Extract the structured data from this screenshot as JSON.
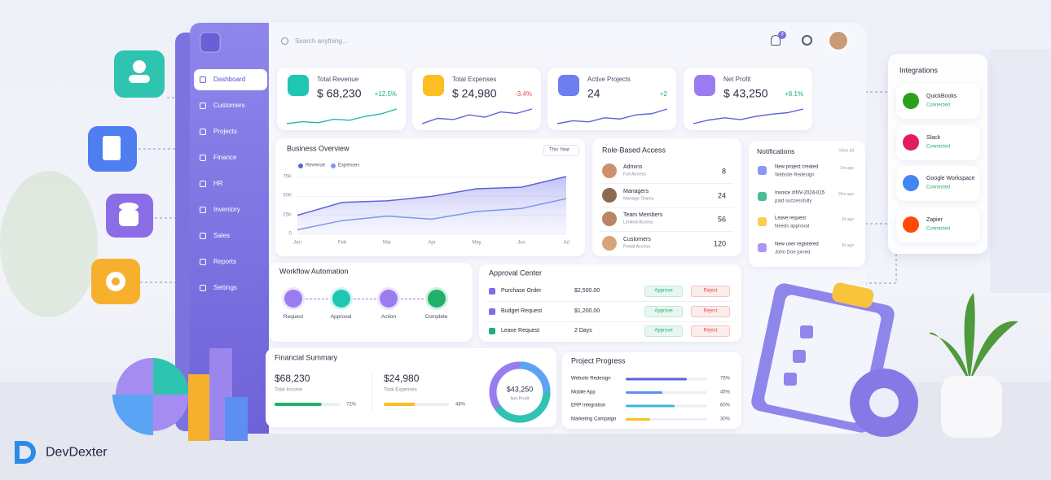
{
  "brand": "DevDexter",
  "search_placeholder": "Search anything...",
  "notification_badge": 3,
  "sidebar": [
    "Dashboard",
    "Customers",
    "Projects",
    "Finance",
    "HR",
    "Inventory",
    "Sales",
    "Reports",
    "Settings"
  ],
  "kpis": [
    {
      "label": "Total Revenue",
      "value": "$ 68,230",
      "change": "+12.5%",
      "trend": [
        3,
        3.4,
        3.2,
        3.9,
        3.7,
        4.5,
        5,
        6
      ]
    },
    {
      "label": "Total Expenses",
      "value": "$ 24,980",
      "change": "-3.4%",
      "trend": [
        2,
        3.8,
        3.4,
        5,
        4.2,
        6,
        5.5,
        7
      ]
    },
    {
      "label": "Active Projects",
      "value": "24",
      "change": "+2",
      "trend": [
        2,
        3,
        2.6,
        4,
        3.6,
        5,
        5.4,
        7
      ]
    },
    {
      "label": "Net Profit",
      "value": "$ 43,250",
      "change": "+8.1%",
      "trend": [
        2,
        3,
        3.6,
        3.1,
        4,
        4.6,
        5,
        6
      ]
    }
  ],
  "chart_data": {
    "type": "area",
    "title": "Business Overview",
    "categories": [
      "Jan",
      "Feb",
      "Mar",
      "Apr",
      "May",
      "Jun",
      "Jul"
    ],
    "series": [
      {
        "name": "Revenue",
        "color": "#5b63d9",
        "values": [
          25000,
          42000,
          44000,
          50000,
          60000,
          62000,
          76000
        ]
      },
      {
        "name": "Expenses",
        "color": "#7d96ef",
        "values": [
          6000,
          18000,
          24000,
          20000,
          30000,
          34000,
          47000
        ]
      }
    ],
    "ylim": [
      0,
      80000
    ],
    "yticks": [
      0,
      {
        "value": 25000,
        "label": "25K"
      },
      {
        "value": 50000,
        "label": "50K"
      },
      {
        "value": 75000,
        "label": "75K"
      }
    ],
    "grid": true
  },
  "overview_filter": "This Year",
  "roles": {
    "title": "Role-Based Access",
    "items": [
      {
        "name": "Admins",
        "access": "Full Access",
        "count": 8
      },
      {
        "name": "Managers",
        "access": "Manage Teams",
        "count": 24
      },
      {
        "name": "Team Members",
        "access": "Limited Access",
        "count": 56
      },
      {
        "name": "Customers",
        "access": "Portal Access",
        "count": 120
      }
    ]
  },
  "notifications": {
    "title": "Notifications",
    "view_all": "View all",
    "items": [
      {
        "title": "New project created",
        "detail": "Website Redesign",
        "time": "2m ago"
      },
      {
        "title": "Invoice #INV-2024-015",
        "detail": "paid successfully",
        "time": "15m ago"
      },
      {
        "title": "Leave request",
        "detail": "Needs approval",
        "time": "1h ago"
      },
      {
        "title": "New user registered",
        "detail": "John Doe joined",
        "time": "3h ago"
      }
    ]
  },
  "integrations": {
    "title": "Integrations",
    "items": [
      {
        "name": "QuickBooks",
        "status": "Connected"
      },
      {
        "name": "Slack",
        "status": "Connected"
      },
      {
        "name": "Google Workspace",
        "status": "Connected"
      },
      {
        "name": "Zapier",
        "status": "Connected"
      }
    ]
  },
  "workflow": {
    "title": "Workflow Automation",
    "steps": [
      "Request",
      "Approval",
      "Action",
      "Complete"
    ]
  },
  "approvals": {
    "title": "Approval Center",
    "approve": "Approve",
    "reject": "Reject",
    "items": [
      {
        "name": "Purchase Order",
        "amount": "$2,500.00"
      },
      {
        "name": "Budget Request",
        "amount": "$1,200.00"
      },
      {
        "name": "Leave Request",
        "amount": "2 Days"
      }
    ]
  },
  "financial_summary": {
    "title": "Financial Summary",
    "income": {
      "amount": "$68,230",
      "label": "Total Income",
      "percent": 72,
      "percent_label": "72%"
    },
    "expenses": {
      "amount": "$24,980",
      "label": "Total Expenses",
      "percent": 48,
      "percent_label": "48%"
    },
    "net": {
      "amount": "$43,250",
      "label": "Net Profit"
    }
  },
  "project_progress": {
    "title": "Project Progress",
    "items": [
      {
        "name": "Website Redesign",
        "value": 75,
        "value_label": "75%"
      },
      {
        "name": "Mobile App",
        "value": 45,
        "value_label": "45%"
      },
      {
        "name": "ERP Integration",
        "value": 60,
        "value_label": "60%"
      },
      {
        "name": "Marketing Campaign",
        "value": 30,
        "value_label": "30%"
      }
    ]
  }
}
